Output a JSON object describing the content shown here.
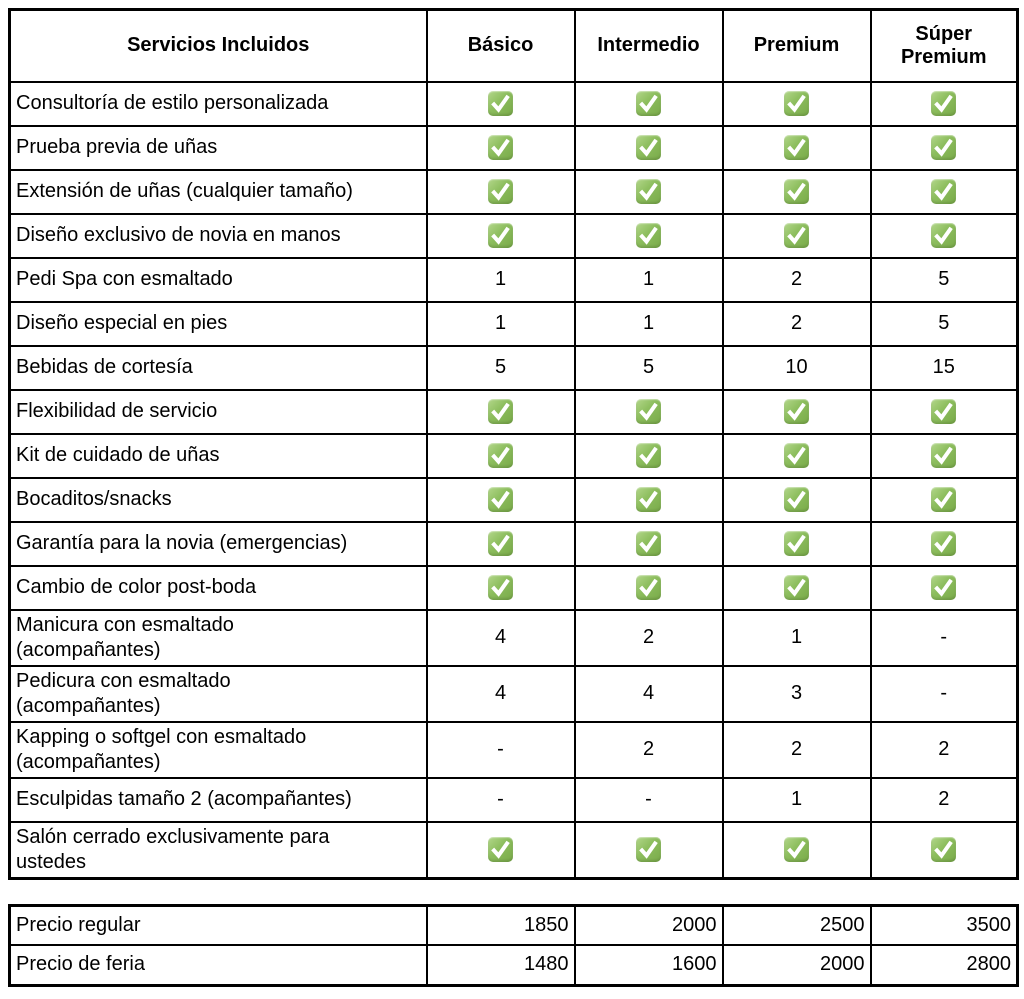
{
  "colors": {
    "check_green": "#8CBD5D",
    "check_green_light": "#B3D78B",
    "check_green_dark": "#79AA49",
    "check_mark": "#FFFFFF",
    "table_border": "#000000",
    "background": "#FFFFFF",
    "text": "#000000"
  },
  "icons": {
    "check": "green-checkbox-with-white-checkmark"
  },
  "services_table": {
    "headers": [
      "Servicios Incluidos",
      "Básico",
      "Intermedio",
      "Premium",
      "Súper Premium"
    ],
    "rows": [
      {
        "label": "Consultoría de estilo personalizada",
        "values": [
          "check",
          "check",
          "check",
          "check"
        ]
      },
      {
        "label": "Prueba previa de uñas",
        "values": [
          "check",
          "check",
          "check",
          "check"
        ]
      },
      {
        "label": "Extensión de uñas (cualquier tamaño)",
        "values": [
          "check",
          "check",
          "check",
          "check"
        ]
      },
      {
        "label": "Diseño exclusivo de novia en manos",
        "values": [
          "check",
          "check",
          "check",
          "check"
        ]
      },
      {
        "label": "Pedi Spa con esmaltado",
        "values": [
          "1",
          "1",
          "2",
          "5"
        ]
      },
      {
        "label": "Diseño especial en pies",
        "values": [
          "1",
          "1",
          "2",
          "5"
        ]
      },
      {
        "label": "Bebidas de cortesía",
        "values": [
          "5",
          "5",
          "10",
          "15"
        ]
      },
      {
        "label": "Flexibilidad de servicio",
        "values": [
          "check",
          "check",
          "check",
          "check"
        ]
      },
      {
        "label": "Kit de cuidado de uñas",
        "values": [
          "check",
          "check",
          "check",
          "check"
        ]
      },
      {
        "label": "Bocaditos/snacks",
        "values": [
          "check",
          "check",
          "check",
          "check"
        ]
      },
      {
        "label": "Garantía para la novia (emergencias)",
        "values": [
          "check",
          "check",
          "check",
          "check"
        ]
      },
      {
        "label": "Cambio de color post-boda",
        "values": [
          "check",
          "check",
          "check",
          "check"
        ]
      },
      {
        "label": "Manicura con esmaltado\n(acompañantes)",
        "values": [
          "4",
          "2",
          "1",
          "-"
        ]
      },
      {
        "label": "Pedicura con esmaltado\n(acompañantes)",
        "values": [
          "4",
          "4",
          "3",
          "-"
        ]
      },
      {
        "label": "Kapping o softgel con esmaltado\n(acompañantes)",
        "values": [
          "-",
          "2",
          "2",
          "2"
        ]
      },
      {
        "label": "Esculpidas tamaño 2 (acompañantes)",
        "values": [
          "-",
          "-",
          "1",
          "2"
        ]
      },
      {
        "label": "Salón cerrado exclusivamente para\nustedes",
        "values": [
          "check",
          "check",
          "check",
          "check"
        ]
      }
    ]
  },
  "price_table": {
    "rows": [
      {
        "label": "Precio regular",
        "values": [
          "1850",
          "2000",
          "2500",
          "3500"
        ]
      },
      {
        "label": "Precio de feria",
        "values": [
          "1480",
          "1600",
          "2000",
          "2800"
        ]
      }
    ]
  }
}
